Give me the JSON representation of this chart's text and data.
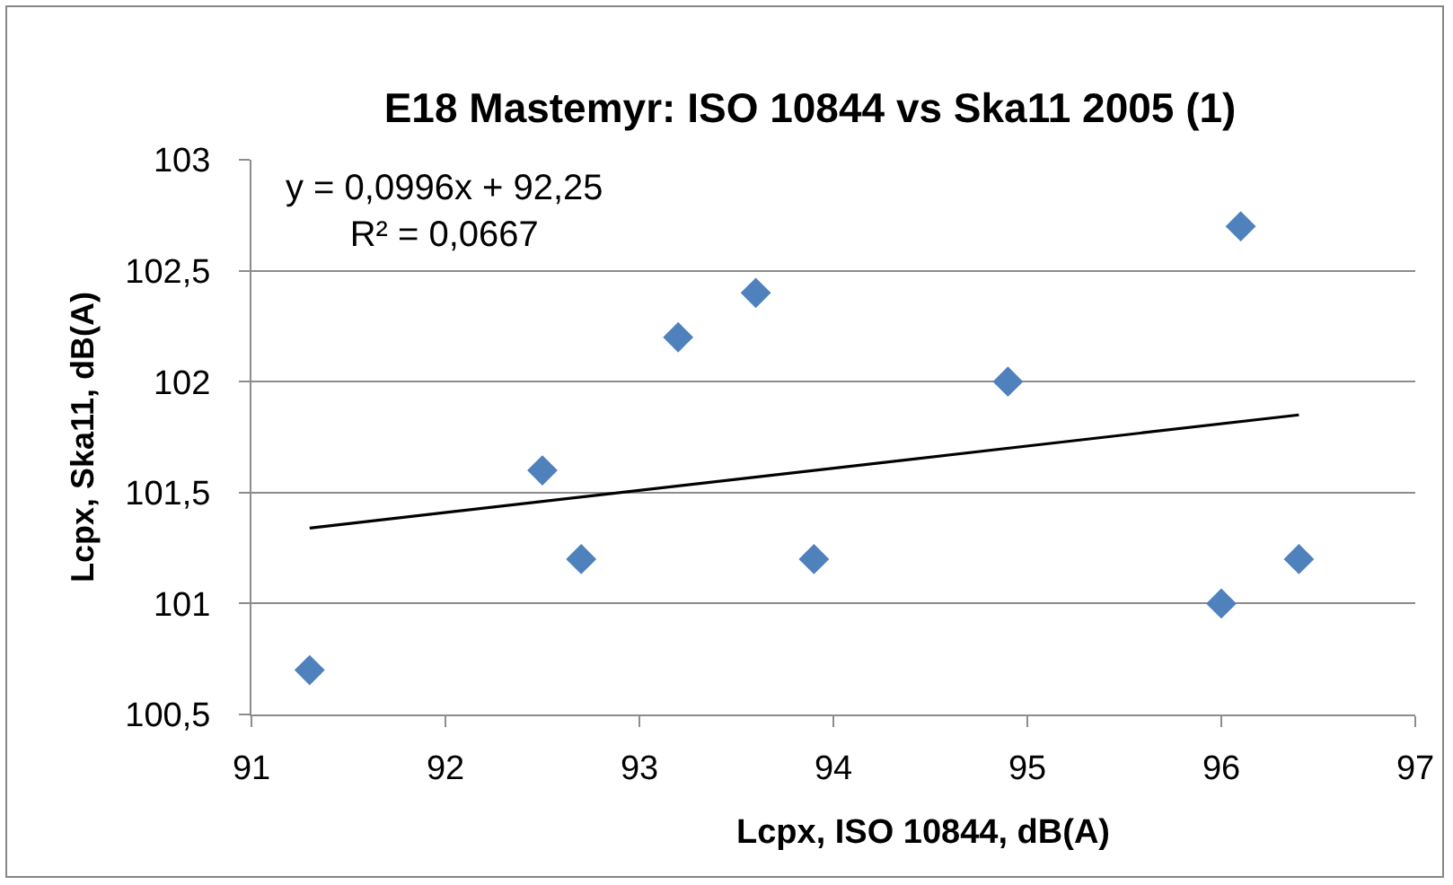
{
  "chart_data": {
    "type": "scatter",
    "title": "E18 Mastemyr: ISO 10844 vs Ska11 2005 (1)",
    "xlabel": "Lcpx, ISO 10844, dB(A)",
    "ylabel": "Lcpx, Ska11, dB(A)",
    "annotations": [
      "y = 0,0996x + 92,25\nR² = 0,0667"
    ],
    "x": [
      91.3,
      92.5,
      92.7,
      93.2,
      93.6,
      93.9,
      94.9,
      96.0,
      96.1,
      96.4
    ],
    "series": [
      {
        "color": "#4f81bd",
        "values": [
          100.7,
          101.6,
          101.2,
          102.2,
          102.4,
          101.2,
          102.0,
          101.0,
          102.7,
          101.2
        ]
      },
      {
        "type": "line",
        "x": [
          91.3,
          96.4
        ],
        "values": [
          101.34,
          101.85
        ],
        "color": "#000000",
        "marker": "none"
      }
    ],
    "xlim": [
      91,
      97
    ],
    "xticks": [
      91,
      92,
      93,
      94,
      95,
      96,
      97
    ],
    "ylim": [
      100.5,
      103
    ],
    "yticks": [
      {
        "value": 100.5,
        "label": "100,5"
      },
      101,
      {
        "value": 101.5,
        "label": "101,5"
      },
      102,
      {
        "value": 102.5,
        "label": "102,5"
      },
      103
    ],
    "grid": "y",
    "marker": "diamond"
  }
}
